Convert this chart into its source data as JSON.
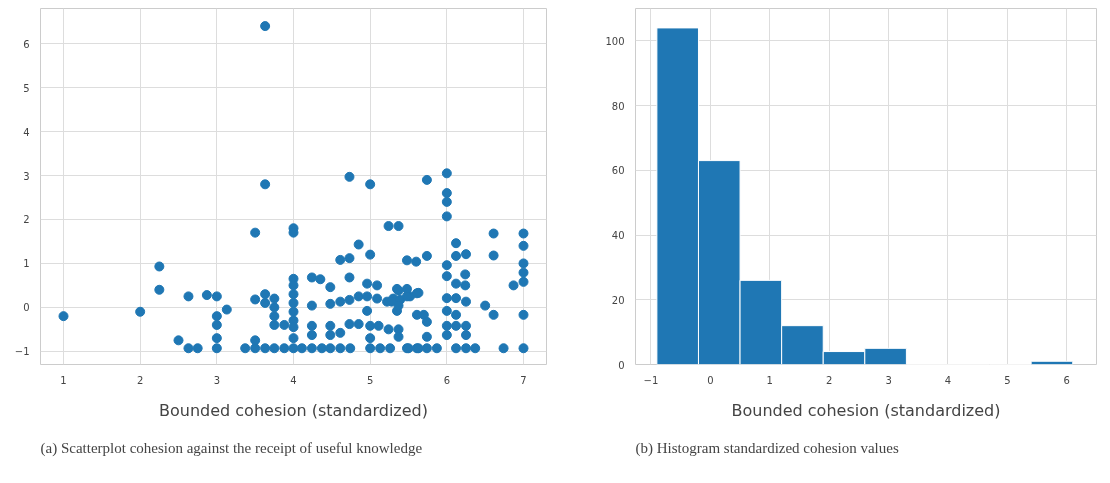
{
  "chart_data": [
    {
      "type": "scatter",
      "xlabel": "Bounded cohesion (standardized)",
      "color": "#1f77b4",
      "marker": "circle",
      "grid": true,
      "xlim": [
        0.7,
        7.3
      ],
      "ylim": [
        -1.3,
        6.8
      ],
      "xticks": [
        1,
        2,
        3,
        4,
        5,
        6,
        7
      ],
      "yticks": [
        -1,
        0,
        1,
        2,
        3,
        4,
        5,
        6
      ],
      "annotations": [
        "(a) Scatterplot cohesion against the receipt of useful knowledge"
      ],
      "x": [
        1,
        2,
        2.25,
        2.25,
        2.5,
        2.63,
        2.63,
        2.75,
        2.87,
        3,
        3,
        3,
        3,
        3,
        3.13,
        3.37,
        3.5,
        3.5,
        3.5,
        3.5,
        3.63,
        3.63,
        3.63,
        3.63,
        3.63,
        3.75,
        3.75,
        3.75,
        3.75,
        3.75,
        3.88,
        3.88,
        4,
        4,
        4,
        4,
        4,
        4,
        4,
        4,
        4,
        4,
        4,
        4.73,
        5,
        5.74,
        5.24,
        5.37,
        4.85,
        4.61,
        4.73,
        5,
        5.48,
        5.6,
        5.74,
        4.24,
        4.35,
        4.48,
        4.73,
        4.96,
        5.09,
        5.35,
        5.48,
        5.63,
        4.24,
        4.48,
        4.61,
        4.73,
        4.85,
        4.96,
        5.09,
        5.22,
        5.3,
        5.39,
        5.52,
        5.7,
        4.96,
        5.35,
        4.24,
        4.48,
        4.73,
        4.85,
        5,
        5.11,
        5.24,
        5.37,
        5.74,
        4.61,
        4.24,
        4.48,
        5,
        5.74,
        4.11,
        4.24,
        4.37,
        4.48,
        4.61,
        4.74,
        5,
        5.13,
        5.26,
        5.48,
        5.61,
        5.74,
        6,
        6,
        6,
        6,
        6.61,
        7,
        7,
        6.61,
        6.12,
        6.12,
        6.25,
        6,
        6,
        7,
        7,
        7,
        6.87,
        6.12,
        6.24,
        6.24,
        6,
        6.12,
        6.25,
        5.37,
        5.48,
        5.61,
        5.28,
        5.37,
        6.5,
        6.61,
        7,
        6,
        6.12,
        5.61,
        6,
        6.12,
        6.25,
        6,
        6.25,
        5.37,
        5.5,
        5.63,
        5.87,
        6.12,
        6.25,
        6.37,
        6.74,
        7
      ],
      "values": [
        -0.2,
        -0.1,
        0.93,
        0.4,
        -0.75,
        -0.93,
        0.25,
        -0.93,
        0.28,
        0.25,
        -0.2,
        -0.4,
        -0.7,
        -0.93,
        -0.05,
        -0.93,
        -0.93,
        -0.75,
        0.18,
        1.7,
        2.8,
        6.4,
        0.3,
        0.1,
        -0.93,
        0.2,
        0,
        -0.2,
        -0.4,
        -0.93,
        -0.4,
        -0.93,
        1.8,
        1.7,
        0.65,
        0.5,
        0.3,
        0.1,
        -0.1,
        -0.3,
        -0.45,
        -0.7,
        -0.93,
        2.97,
        2.8,
        2.9,
        1.85,
        1.85,
        1.43,
        1.08,
        1.12,
        1.2,
        1.07,
        1.04,
        1.17,
        0.68,
        0.64,
        0.46,
        0.68,
        0.54,
        0.5,
        0.42,
        0.42,
        0.33,
        0.04,
        0.08,
        0.13,
        0.17,
        0.25,
        0.25,
        0.2,
        0.13,
        0.2,
        0.17,
        0.25,
        -0.17,
        -0.08,
        -0.08,
        -0.42,
        -0.42,
        -0.38,
        -0.38,
        -0.42,
        -0.42,
        -0.5,
        -0.5,
        -0.33,
        -0.58,
        -0.63,
        -0.63,
        -0.7,
        -0.67,
        -0.93,
        -0.93,
        -0.93,
        -0.93,
        -0.93,
        -0.93,
        -0.93,
        -0.93,
        -0.93,
        -0.93,
        -0.93,
        -0.93,
        3.05,
        2.6,
        2.4,
        2.07,
        1.68,
        1.68,
        1.4,
        1.18,
        1.46,
        1.17,
        1.21,
        0.96,
        0.71,
        1.0,
        0.79,
        0.58,
        0.5,
        0.54,
        0.5,
        0.75,
        0.21,
        0.21,
        0.13,
        0.38,
        0.25,
        0.32,
        0.13,
        0.04,
        0.04,
        -0.17,
        -0.17,
        -0.08,
        -0.17,
        -0.17,
        -0.42,
        -0.42,
        -0.42,
        -0.63,
        -0.63,
        -0.67,
        -0.93,
        -0.93,
        -0.93,
        -0.93,
        -0.93,
        -0.93,
        -0.93,
        -0.93
      ]
    },
    {
      "type": "histogram",
      "xlabel": "Bounded cohesion (standardized)",
      "color": "#1f77b4",
      "grid": true,
      "bins": [
        -0.9,
        -0.2,
        0.5,
        1.2,
        1.9,
        2.6,
        3.3,
        4.0,
        4.7,
        5.4,
        6.1
      ],
      "values": [
        104,
        63,
        26,
        12,
        4,
        5,
        0,
        0,
        0,
        1
      ],
      "xlim": [
        -1.26,
        6.5
      ],
      "ylim": [
        0,
        110
      ],
      "xticks": [
        {
          "value": -1,
          "label": "−1"
        },
        0,
        1,
        2,
        3,
        4,
        5,
        6
      ],
      "yticks": [
        0,
        20,
        40,
        60,
        80,
        100
      ],
      "annotations": [
        "(b) Histogram standardized cohesion values"
      ]
    }
  ]
}
